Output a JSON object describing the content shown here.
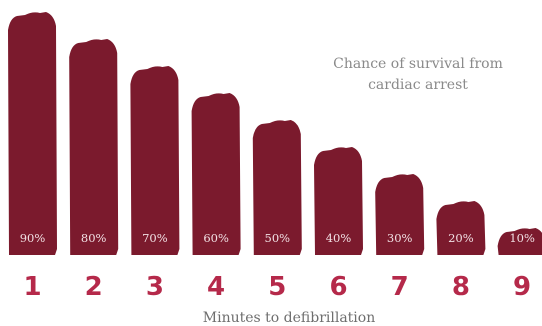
{
  "chart_data": {
    "type": "bar",
    "title_lines": [
      "Chance of survival from",
      "cardiac arrest"
    ],
    "xlabel": "Minutes to defibrillation",
    "ylabel": "",
    "categories": [
      "1",
      "2",
      "3",
      "4",
      "5",
      "6",
      "7",
      "8",
      "9"
    ],
    "values": [
      90,
      80,
      70,
      60,
      50,
      40,
      30,
      20,
      10
    ],
    "value_labels": [
      "90%",
      "80%",
      "70%",
      "60%",
      "50%",
      "40%",
      "30%",
      "20%",
      "10%"
    ],
    "ylim": [
      0,
      90
    ],
    "grid": false,
    "legend": "none",
    "colors": {
      "bar": "#7b1a2d",
      "category": "#b5294a",
      "value_label": "#f1dfe3",
      "text": "#8a8a8a"
    }
  }
}
